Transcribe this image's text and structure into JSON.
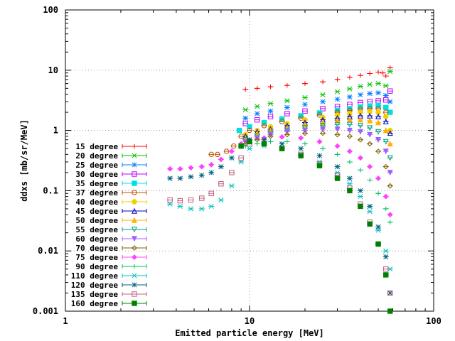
{
  "chart_data": {
    "type": "scatter",
    "title": "",
    "xlabel": "Emitted particle energy [MeV]",
    "ylabel": "ddxs [mb/sr/MeV]",
    "xscale": "log",
    "yscale": "log",
    "xlim": [
      1,
      100
    ],
    "ylim": [
      0.001,
      100
    ],
    "grid": true,
    "legend_position": "left-middle",
    "x_ticks": [
      {
        "value": 1,
        "label": "1"
      },
      {
        "value": 10,
        "label": "10"
      },
      {
        "value": 100,
        "label": "100"
      }
    ],
    "y_ticks": [
      {
        "value": 0.001,
        "label": "0.001"
      },
      {
        "value": 0.01,
        "label": "0.01"
      },
      {
        "value": 0.1,
        "label": "0.1"
      },
      {
        "value": 1,
        "label": "1"
      },
      {
        "value": 10,
        "label": "10"
      },
      {
        "value": 100,
        "label": "100"
      }
    ],
    "series": [
      {
        "name": "15 degree",
        "color": "#ff0000",
        "marker": "plus",
        "points": [
          [
            9.5,
            4.8
          ],
          [
            11,
            5.0
          ],
          [
            13,
            5.3
          ],
          [
            16,
            5.6
          ],
          [
            20,
            6.0
          ],
          [
            25,
            6.4
          ],
          [
            30,
            7.0
          ],
          [
            35,
            7.6
          ],
          [
            40,
            8.2
          ],
          [
            45,
            8.8
          ],
          [
            50,
            9.3
          ],
          [
            53,
            9.0
          ],
          [
            55,
            8.0
          ],
          [
            58,
            11.0
          ]
        ]
      },
      {
        "name": "20 degree",
        "color": "#00c000",
        "marker": "x",
        "points": [
          [
            9.5,
            2.2
          ],
          [
            11,
            2.5
          ],
          [
            13,
            2.8
          ],
          [
            16,
            3.1
          ],
          [
            20,
            3.5
          ],
          [
            25,
            3.9
          ],
          [
            30,
            4.4
          ],
          [
            35,
            4.9
          ],
          [
            40,
            5.4
          ],
          [
            45,
            5.8
          ],
          [
            50,
            6.0
          ],
          [
            55,
            5.5
          ],
          [
            58,
            9.5
          ]
        ]
      },
      {
        "name": "25 degree",
        "color": "#0080ff",
        "marker": "star",
        "points": [
          [
            9.5,
            1.6
          ],
          [
            11,
            1.9
          ],
          [
            13,
            2.1
          ],
          [
            16,
            2.4
          ],
          [
            20,
            2.7
          ],
          [
            25,
            3.0
          ],
          [
            30,
            3.3
          ],
          [
            35,
            3.6
          ],
          [
            40,
            3.9
          ],
          [
            45,
            4.1
          ],
          [
            50,
            4.2
          ],
          [
            55,
            3.8
          ],
          [
            58,
            3.0
          ]
        ]
      },
      {
        "name": "30 degree",
        "color": "#c000ff",
        "marker": "square",
        "points": [
          [
            9.5,
            1.3
          ],
          [
            11,
            1.5
          ],
          [
            13,
            1.7
          ],
          [
            16,
            1.9
          ],
          [
            20,
            2.1
          ],
          [
            25,
            2.3
          ],
          [
            30,
            2.5
          ],
          [
            35,
            2.7
          ],
          [
            40,
            2.9
          ],
          [
            45,
            3.0
          ],
          [
            50,
            3.1
          ],
          [
            55,
            3.2
          ],
          [
            58,
            4.5
          ]
        ]
      },
      {
        "name": "35 degree",
        "color": "#00e0e0",
        "marker": "square-filled",
        "points": [
          [
            8.8,
            1.0
          ],
          [
            10,
            1.15
          ],
          [
            12,
            1.35
          ],
          [
            15,
            1.55
          ],
          [
            19,
            1.75
          ],
          [
            24,
            1.95
          ],
          [
            30,
            2.15
          ],
          [
            35,
            2.3
          ],
          [
            40,
            2.45
          ],
          [
            45,
            2.55
          ],
          [
            50,
            2.6
          ],
          [
            55,
            2.4
          ],
          [
            58,
            2.0
          ]
        ]
      },
      {
        "name": "37 degree",
        "color": "#c05000",
        "marker": "circle",
        "points": [
          [
            6.2,
            0.4
          ],
          [
            6.7,
            0.4
          ],
          [
            7.5,
            0.45
          ],
          [
            8.2,
            0.55
          ],
          [
            9,
            0.8
          ],
          [
            10,
            1.0
          ],
          [
            12,
            1.2
          ],
          [
            15,
            1.4
          ],
          [
            19,
            1.6
          ],
          [
            24,
            1.8
          ],
          [
            30,
            2.0
          ],
          [
            35,
            2.15
          ],
          [
            40,
            2.25
          ],
          [
            45,
            2.3
          ],
          [
            50,
            2.3
          ],
          [
            55,
            2.0
          ]
        ]
      },
      {
        "name": "40 degree",
        "color": "#f0d000",
        "marker": "circle-filled",
        "points": [
          [
            9.5,
            0.85
          ],
          [
            11,
            1.0
          ],
          [
            13,
            1.15
          ],
          [
            16,
            1.3
          ],
          [
            20,
            1.5
          ],
          [
            25,
            1.65
          ],
          [
            30,
            1.8
          ],
          [
            35,
            1.9
          ],
          [
            40,
            2.0
          ],
          [
            45,
            2.05
          ],
          [
            50,
            2.0
          ],
          [
            55,
            1.7
          ],
          [
            58,
            1.0
          ]
        ]
      },
      {
        "name": "45 degree",
        "color": "#0000c0",
        "marker": "triangle",
        "points": [
          [
            9.5,
            0.8
          ],
          [
            11,
            0.95
          ],
          [
            13,
            1.05
          ],
          [
            16,
            1.2
          ],
          [
            20,
            1.35
          ],
          [
            25,
            1.5
          ],
          [
            30,
            1.6
          ],
          [
            35,
            1.7
          ],
          [
            40,
            1.75
          ],
          [
            45,
            1.75
          ],
          [
            50,
            1.7
          ],
          [
            55,
            1.4
          ],
          [
            58,
            0.9
          ]
        ]
      },
      {
        "name": "50 degree",
        "color": "#ffb000",
        "marker": "triangle-filled",
        "points": [
          [
            9.5,
            0.75
          ],
          [
            11,
            0.9
          ],
          [
            13,
            1.0
          ],
          [
            16,
            1.1
          ],
          [
            20,
            1.25
          ],
          [
            25,
            1.35
          ],
          [
            30,
            1.45
          ],
          [
            35,
            1.5
          ],
          [
            40,
            1.5
          ],
          [
            45,
            1.45
          ],
          [
            50,
            1.35
          ],
          [
            55,
            1.0
          ],
          [
            58,
            0.6
          ]
        ]
      },
      {
        "name": "55 degree",
        "color": "#00a080",
        "marker": "triangle-down",
        "points": [
          [
            9.5,
            0.7
          ],
          [
            11,
            0.8
          ],
          [
            13,
            0.9
          ],
          [
            16,
            1.0
          ],
          [
            20,
            1.1
          ],
          [
            25,
            1.2
          ],
          [
            30,
            1.25
          ],
          [
            35,
            1.25
          ],
          [
            40,
            1.2
          ],
          [
            45,
            1.1
          ],
          [
            50,
            0.95
          ],
          [
            55,
            0.65
          ],
          [
            58,
            0.35
          ]
        ]
      },
      {
        "name": "60 degree",
        "color": "#a060ff",
        "marker": "triangle-down-filled",
        "points": [
          [
            9.5,
            0.65
          ],
          [
            11,
            0.75
          ],
          [
            13,
            0.85
          ],
          [
            16,
            0.95
          ],
          [
            20,
            1.0
          ],
          [
            25,
            1.05
          ],
          [
            30,
            1.05
          ],
          [
            35,
            1.0
          ],
          [
            40,
            0.95
          ],
          [
            45,
            0.85
          ],
          [
            50,
            0.7
          ],
          [
            55,
            0.45
          ],
          [
            58,
            0.2
          ]
        ]
      },
      {
        "name": "70 degree",
        "color": "#806000",
        "marker": "diamond",
        "points": [
          [
            9.5,
            0.6
          ],
          [
            11,
            0.7
          ],
          [
            13,
            0.8
          ],
          [
            16,
            0.85
          ],
          [
            20,
            0.9
          ],
          [
            25,
            0.9
          ],
          [
            30,
            0.85
          ],
          [
            35,
            0.8
          ],
          [
            40,
            0.7
          ],
          [
            45,
            0.6
          ],
          [
            50,
            0.45
          ],
          [
            55,
            0.25
          ],
          [
            58,
            0.12
          ]
        ]
      },
      {
        "name": "75 degree",
        "color": "#ff40ff",
        "marker": "diamond-filled",
        "points": [
          [
            3.7,
            0.23
          ],
          [
            4.2,
            0.23
          ],
          [
            4.8,
            0.24
          ],
          [
            5.5,
            0.25
          ],
          [
            6.2,
            0.27
          ],
          [
            7,
            0.33
          ],
          [
            8,
            0.45
          ],
          [
            9,
            0.6
          ],
          [
            10,
            0.7
          ],
          [
            12,
            0.75
          ],
          [
            15,
            0.78
          ],
          [
            19,
            0.75
          ],
          [
            24,
            0.65
          ],
          [
            30,
            0.55
          ],
          [
            35,
            0.45
          ],
          [
            40,
            0.35
          ],
          [
            45,
            0.25
          ],
          [
            50,
            0.16
          ],
          [
            55,
            0.08
          ],
          [
            58,
            0.04
          ]
        ]
      },
      {
        "name": "90 degree",
        "color": "#00c060",
        "marker": "plus",
        "points": [
          [
            9.5,
            0.55
          ],
          [
            11,
            0.6
          ],
          [
            13,
            0.65
          ],
          [
            16,
            0.65
          ],
          [
            20,
            0.6
          ],
          [
            25,
            0.5
          ],
          [
            30,
            0.4
          ],
          [
            35,
            0.3
          ],
          [
            40,
            0.22
          ],
          [
            45,
            0.15
          ],
          [
            50,
            0.09
          ],
          [
            55,
            0.05
          ],
          [
            58,
            0.03
          ]
        ]
      },
      {
        "name": "110 degree",
        "color": "#00c0c0",
        "marker": "x",
        "points": [
          [
            3.7,
            0.06
          ],
          [
            4.2,
            0.055
          ],
          [
            4.8,
            0.05
          ],
          [
            5.5,
            0.05
          ],
          [
            6.2,
            0.055
          ],
          [
            7,
            0.07
          ],
          [
            8,
            0.12
          ],
          [
            9,
            0.3
          ],
          [
            10,
            0.5
          ],
          [
            12,
            0.55
          ],
          [
            15,
            0.5
          ],
          [
            19,
            0.4
          ],
          [
            24,
            0.3
          ],
          [
            30,
            0.2
          ],
          [
            35,
            0.13
          ],
          [
            40,
            0.08
          ],
          [
            45,
            0.045
          ],
          [
            50,
            0.022
          ],
          [
            55,
            0.01
          ],
          [
            58,
            0.005
          ]
        ]
      },
      {
        "name": "120 degree",
        "color": "#006080",
        "marker": "star",
        "points": [
          [
            3.7,
            0.16
          ],
          [
            4.2,
            0.16
          ],
          [
            4.8,
            0.17
          ],
          [
            5.5,
            0.18
          ],
          [
            6.2,
            0.2
          ],
          [
            7,
            0.25
          ],
          [
            8,
            0.35
          ],
          [
            9,
            0.55
          ],
          [
            10,
            0.7
          ],
          [
            12,
            0.7
          ],
          [
            15,
            0.6
          ],
          [
            19,
            0.5
          ],
          [
            24,
            0.38
          ],
          [
            30,
            0.25
          ],
          [
            35,
            0.16
          ],
          [
            40,
            0.1
          ],
          [
            45,
            0.055
          ],
          [
            50,
            0.025
          ],
          [
            55,
            0.008
          ],
          [
            58,
            0.002
          ]
        ]
      },
      {
        "name": "135 degree",
        "color": "#c06080",
        "marker": "square",
        "points": [
          [
            3.7,
            0.07
          ],
          [
            4.2,
            0.068
          ],
          [
            4.8,
            0.07
          ],
          [
            5.5,
            0.075
          ],
          [
            6.2,
            0.09
          ],
          [
            7,
            0.13
          ],
          [
            8,
            0.2
          ],
          [
            9,
            0.35
          ],
          [
            10,
            0.6
          ],
          [
            12,
            0.6
          ],
          [
            15,
            0.5
          ],
          [
            19,
            0.4
          ],
          [
            24,
            0.28
          ],
          [
            30,
            0.18
          ],
          [
            35,
            0.11
          ],
          [
            40,
            0.06
          ],
          [
            45,
            0.03
          ],
          [
            50,
            0.013
          ],
          [
            55,
            0.005
          ],
          [
            58,
            0.002
          ]
        ]
      },
      {
        "name": "160 degree",
        "color": "#008000",
        "marker": "square-filled",
        "points": [
          [
            9,
            0.55
          ],
          [
            10,
            0.65
          ],
          [
            12,
            0.6
          ],
          [
            15,
            0.5
          ],
          [
            19,
            0.38
          ],
          [
            24,
            0.26
          ],
          [
            30,
            0.16
          ],
          [
            35,
            0.1
          ],
          [
            40,
            0.055
          ],
          [
            45,
            0.028
          ],
          [
            50,
            0.013
          ],
          [
            55,
            0.004
          ],
          [
            58,
            0.001
          ]
        ]
      }
    ]
  }
}
